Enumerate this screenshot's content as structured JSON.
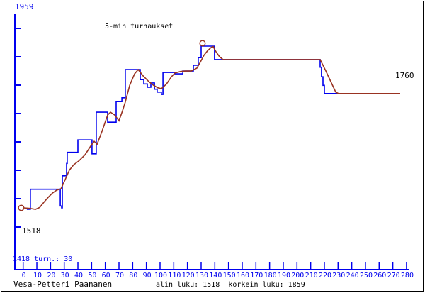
{
  "title": "5-min turnaukset",
  "colors": {
    "primary_line": "#0000ee",
    "secondary_line": "#993322",
    "axis": "#0000ee",
    "text": "#000000",
    "frame": "#000000",
    "background": "#ffffff"
  },
  "y_axis": {
    "top_label": "1959",
    "low_label": "1518",
    "bottom_label": "1418 turn.: 30"
  },
  "right_label": "1760",
  "footer": {
    "player": "Vesa-Petteri Paananen",
    "stats": "alin luku: 1518  korkein luku: 1859"
  },
  "chart_data": {
    "type": "line",
    "title": "5-min turnaukset",
    "xlabel": "",
    "ylabel": "",
    "x_range": [
      0,
      280
    ],
    "y_range": [
      1418,
      1959
    ],
    "x_ticks": [
      0,
      10,
      20,
      30,
      40,
      50,
      60,
      70,
      80,
      90,
      100,
      110,
      120,
      130,
      140,
      150,
      160,
      170,
      180,
      190,
      200,
      210,
      220,
      230,
      240,
      250,
      260,
      270,
      280
    ],
    "min_rating": 1518,
    "max_rating": 1859,
    "final_rating": 1760,
    "tournaments": 30,
    "grid": false,
    "legend": null,
    "series": [
      {
        "name": "rating-steps",
        "color": "#0000ee",
        "points": [
          [
            2.7,
            1518
          ],
          [
            5.3,
            1518
          ],
          [
            5.3,
            1560
          ],
          [
            27.1,
            1560
          ],
          [
            27.1,
            1525
          ],
          [
            28.1,
            1525
          ],
          [
            28.1,
            1521
          ],
          [
            28.6,
            1521
          ],
          [
            28.6,
            1588
          ],
          [
            31.7,
            1588
          ],
          [
            31.7,
            1614
          ],
          [
            32.2,
            1614
          ],
          [
            32.2,
            1637
          ],
          [
            40,
            1637
          ],
          [
            40,
            1663
          ],
          [
            50.3,
            1663
          ],
          [
            50.3,
            1634
          ],
          [
            53.4,
            1634
          ],
          [
            53.4,
            1721
          ],
          [
            61.7,
            1721
          ],
          [
            61.7,
            1700
          ],
          [
            67.9,
            1700
          ],
          [
            67.9,
            1743
          ],
          [
            72.1,
            1743
          ],
          [
            72.1,
            1751
          ],
          [
            74.6,
            1751
          ],
          [
            74.6,
            1810
          ],
          [
            85.5,
            1810
          ],
          [
            85.5,
            1789
          ],
          [
            88.1,
            1789
          ],
          [
            88.1,
            1780
          ],
          [
            90.7,
            1780
          ],
          [
            90.7,
            1773
          ],
          [
            93.3,
            1773
          ],
          [
            93.3,
            1782
          ],
          [
            95.9,
            1782
          ],
          [
            95.9,
            1769
          ],
          [
            97.9,
            1769
          ],
          [
            97.9,
            1763
          ],
          [
            101,
            1763
          ],
          [
            101,
            1758
          ],
          [
            102.1,
            1758
          ],
          [
            102.1,
            1804
          ],
          [
            110.9,
            1804
          ],
          [
            110.9,
            1801
          ],
          [
            116.6,
            1801
          ],
          [
            116.6,
            1807
          ],
          [
            124.3,
            1807
          ],
          [
            124.3,
            1819
          ],
          [
            127.9,
            1819
          ],
          [
            127.9,
            1835
          ],
          [
            130,
            1835
          ],
          [
            130,
            1859
          ],
          [
            139.8,
            1859
          ],
          [
            139.8,
            1831
          ],
          [
            216.9,
            1831
          ],
          [
            216.9,
            1815
          ],
          [
            217.9,
            1815
          ],
          [
            217.9,
            1795
          ],
          [
            219,
            1795
          ],
          [
            219,
            1777
          ],
          [
            220,
            1777
          ],
          [
            220,
            1760
          ],
          [
            229.8,
            1760
          ]
        ]
      },
      {
        "name": "rating-smoothed",
        "color": "#993322",
        "points": [
          [
            0.7,
            1521
          ],
          [
            4.8,
            1520
          ],
          [
            9,
            1518
          ],
          [
            12.1,
            1522
          ],
          [
            15.2,
            1533
          ],
          [
            18.3,
            1543
          ],
          [
            21.4,
            1552
          ],
          [
            24.5,
            1558
          ],
          [
            27.6,
            1561
          ],
          [
            30.7,
            1580
          ],
          [
            33.8,
            1600
          ],
          [
            36.9,
            1611
          ],
          [
            41,
            1620
          ],
          [
            45.2,
            1632
          ],
          [
            49.3,
            1650
          ],
          [
            51.9,
            1660
          ],
          [
            54,
            1654
          ],
          [
            57.6,
            1681
          ],
          [
            61.7,
            1715
          ],
          [
            63.8,
            1721
          ],
          [
            66.9,
            1715
          ],
          [
            70,
            1703
          ],
          [
            72.6,
            1724
          ],
          [
            74.6,
            1742
          ],
          [
            77.8,
            1777
          ],
          [
            81.4,
            1801
          ],
          [
            84,
            1810
          ],
          [
            87.6,
            1797
          ],
          [
            91.7,
            1785
          ],
          [
            95.3,
            1777
          ],
          [
            98.4,
            1772
          ],
          [
            101,
            1770
          ],
          [
            104.7,
            1780
          ],
          [
            108.3,
            1795
          ],
          [
            110.9,
            1803
          ],
          [
            115,
            1806
          ],
          [
            118.6,
            1807
          ],
          [
            122.7,
            1807
          ],
          [
            126.9,
            1813
          ],
          [
            129.5,
            1826
          ],
          [
            132.1,
            1840
          ],
          [
            134.6,
            1849
          ],
          [
            137.2,
            1856
          ],
          [
            138.8,
            1858
          ],
          [
            140.9,
            1847
          ],
          [
            143.4,
            1837
          ],
          [
            146,
            1831
          ],
          [
            216.9,
            1831
          ],
          [
            221.1,
            1807
          ],
          [
            224.7,
            1785
          ],
          [
            228.3,
            1763
          ],
          [
            230.4,
            1760
          ],
          [
            275.4,
            1760
          ]
        ]
      }
    ],
    "markers": [
      {
        "x": -1.4,
        "y": 1521
      },
      {
        "x": 131,
        "y": 1865
      }
    ]
  }
}
